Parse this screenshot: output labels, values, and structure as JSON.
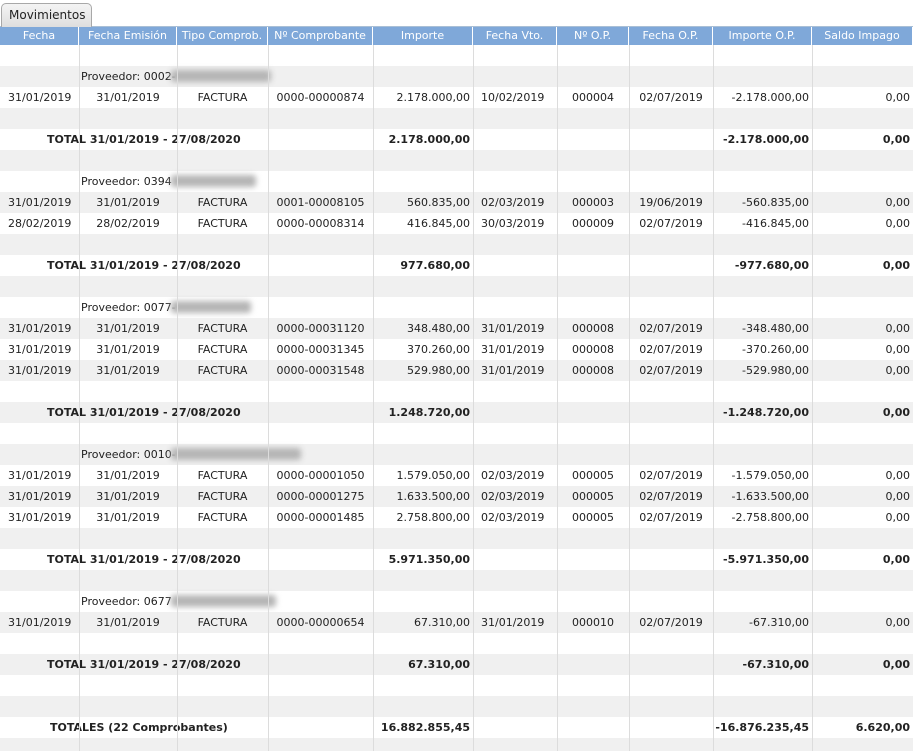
{
  "tab": "Movimientos",
  "table": {
    "columns": [
      "Fecha",
      "Fecha Emisión",
      "Tipo Comprob.",
      "Nº Comprobante",
      "Importe",
      "Fecha Vto.",
      "Nº O.P.",
      "Fecha O.P.",
      "Importe O.P.",
      "Saldo Impago"
    ],
    "groups": [
      {
        "proveedor": "Proveedor: 0002-",
        "rows": [
          [
            "31/01/2019",
            "31/01/2019",
            "FACTURA",
            "0000-00000874",
            "2.178.000,00",
            "10/02/2019",
            "000004",
            "02/07/2019",
            "-2.178.000,00",
            "0,00"
          ]
        ],
        "total": {
          "label": "TOTAL 31/01/2019 - 27/08/2020",
          "importe": "2.178.000,00",
          "importe_op": "-2.178.000,00",
          "saldo": "0,00"
        }
      },
      {
        "proveedor": "Proveedor: 0394",
        "rows": [
          [
            "31/01/2019",
            "31/01/2019",
            "FACTURA",
            "0001-00008105",
            "560.835,00",
            "02/03/2019",
            "000003",
            "19/06/2019",
            "-560.835,00",
            "0,00"
          ],
          [
            "28/02/2019",
            "28/02/2019",
            "FACTURA",
            "0000-00008314",
            "416.845,00",
            "30/03/2019",
            "000009",
            "02/07/2019",
            "-416.845,00",
            "0,00"
          ]
        ],
        "total": {
          "label": "TOTAL 31/01/2019 - 27/08/2020",
          "importe": "977.680,00",
          "importe_op": "-977.680,00",
          "saldo": "0,00"
        }
      },
      {
        "proveedor": "Proveedor: 0077-",
        "rows": [
          [
            "31/01/2019",
            "31/01/2019",
            "FACTURA",
            "0000-00031120",
            "348.480,00",
            "31/01/2019",
            "000008",
            "02/07/2019",
            "-348.480,00",
            "0,00"
          ],
          [
            "31/01/2019",
            "31/01/2019",
            "FACTURA",
            "0000-00031345",
            "370.260,00",
            "31/01/2019",
            "000008",
            "02/07/2019",
            "-370.260,00",
            "0,00"
          ],
          [
            "31/01/2019",
            "31/01/2019",
            "FACTURA",
            "0000-00031548",
            "529.980,00",
            "31/01/2019",
            "000008",
            "02/07/2019",
            "-529.980,00",
            "0,00"
          ]
        ],
        "total": {
          "label": "TOTAL 31/01/2019 - 27/08/2020",
          "importe": "1.248.720,00",
          "importe_op": "-1.248.720,00",
          "saldo": "0,00"
        }
      },
      {
        "proveedor": "Proveedor: 0010-",
        "rows": [
          [
            "31/01/2019",
            "31/01/2019",
            "FACTURA",
            "0000-00001050",
            "1.579.050,00",
            "02/03/2019",
            "000005",
            "02/07/2019",
            "-1.579.050,00",
            "0,00"
          ],
          [
            "31/01/2019",
            "31/01/2019",
            "FACTURA",
            "0000-00001275",
            "1.633.500,00",
            "02/03/2019",
            "000005",
            "02/07/2019",
            "-1.633.500,00",
            "0,00"
          ],
          [
            "31/01/2019",
            "31/01/2019",
            "FACTURA",
            "0000-00001485",
            "2.758.800,00",
            "02/03/2019",
            "000005",
            "02/07/2019",
            "-2.758.800,00",
            "0,00"
          ]
        ],
        "total": {
          "label": "TOTAL 31/01/2019 - 27/08/2020",
          "importe": "5.971.350,00",
          "importe_op": "-5.971.350,00",
          "saldo": "0,00"
        }
      },
      {
        "proveedor": "Proveedor: 0677",
        "rows": [
          [
            "31/01/2019",
            "31/01/2019",
            "FACTURA",
            "0000-00000654",
            "67.310,00",
            "31/01/2019",
            "000010",
            "02/07/2019",
            "-67.310,00",
            "0,00"
          ]
        ],
        "total": {
          "label": "TOTAL 31/01/2019 - 27/08/2020",
          "importe": "67.310,00",
          "importe_op": "-67.310,00",
          "saldo": "0,00"
        }
      }
    ],
    "grand_total": {
      "label": "TOTALES (22  Comprobantes)",
      "importe": "16.882.855,45",
      "importe_op": "-16.876.235,45",
      "saldo": "6.620,00"
    }
  }
}
